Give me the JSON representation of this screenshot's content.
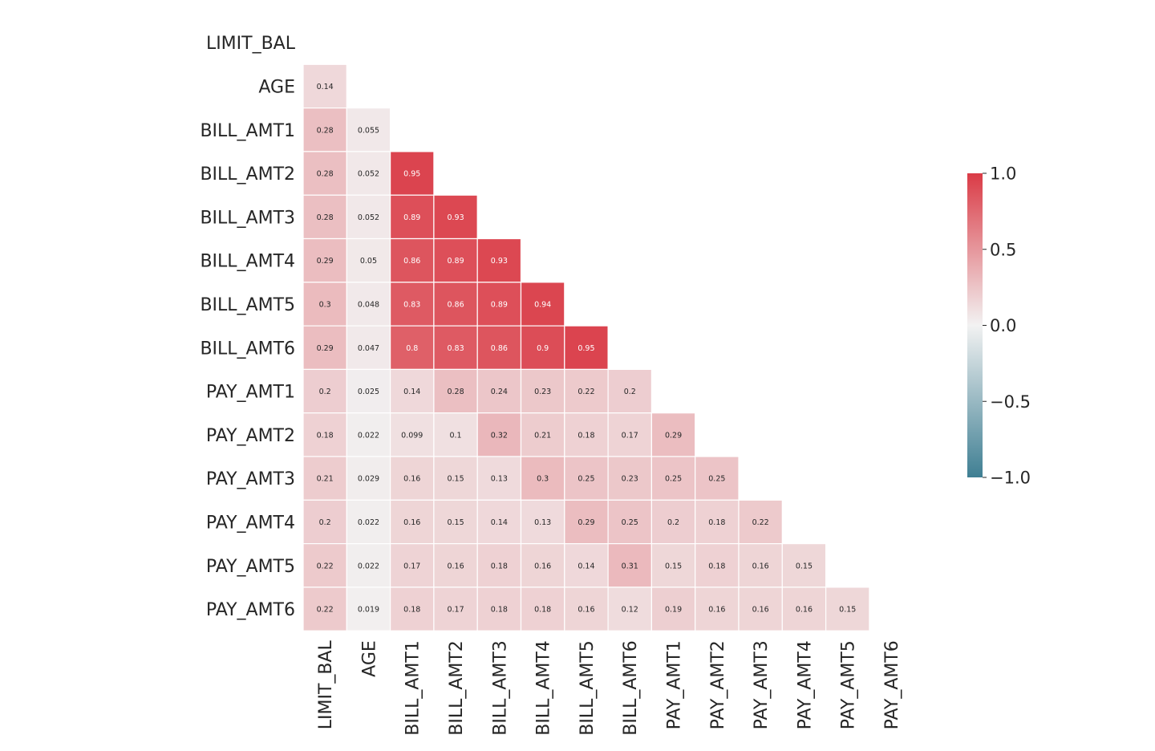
{
  "chart_data": {
    "type": "heatmap",
    "title": "",
    "labels": [
      "LIMIT_BAL",
      "AGE",
      "BILL_AMT1",
      "BILL_AMT2",
      "BILL_AMT3",
      "BILL_AMT4",
      "BILL_AMT5",
      "BILL_AMT6",
      "PAY_AMT1",
      "PAY_AMT2",
      "PAY_AMT3",
      "PAY_AMT4",
      "PAY_AMT5",
      "PAY_AMT6"
    ],
    "mask": "upper-triangle-including-diagonal",
    "rows": [
      [],
      [
        "0.14"
      ],
      [
        "0.28",
        "0.055"
      ],
      [
        "0.28",
        "0.052",
        "0.95"
      ],
      [
        "0.28",
        "0.052",
        "0.89",
        "0.93"
      ],
      [
        "0.29",
        "0.05",
        "0.86",
        "0.89",
        "0.93"
      ],
      [
        "0.3",
        "0.048",
        "0.83",
        "0.86",
        "0.89",
        "0.94"
      ],
      [
        "0.29",
        "0.047",
        "0.8",
        "0.83",
        "0.86",
        "0.9",
        "0.95"
      ],
      [
        "0.2",
        "0.025",
        "0.14",
        "0.28",
        "0.24",
        "0.23",
        "0.22",
        "0.2"
      ],
      [
        "0.18",
        "0.022",
        "0.099",
        "0.1",
        "0.32",
        "0.21",
        "0.18",
        "0.17",
        "0.29"
      ],
      [
        "0.21",
        "0.029",
        "0.16",
        "0.15",
        "0.13",
        "0.3",
        "0.25",
        "0.23",
        "0.25",
        "0.25"
      ],
      [
        "0.2",
        "0.022",
        "0.16",
        "0.15",
        "0.14",
        "0.13",
        "0.29",
        "0.25",
        "0.2",
        "0.18",
        "0.22"
      ],
      [
        "0.22",
        "0.022",
        "0.17",
        "0.16",
        "0.18",
        "0.16",
        "0.14",
        "0.31",
        "0.15",
        "0.18",
        "0.16",
        "0.15"
      ],
      [
        "0.22",
        "0.019",
        "0.18",
        "0.17",
        "0.18",
        "0.18",
        "0.16",
        "0.12",
        "0.19",
        "0.16",
        "0.16",
        "0.16",
        "0.15"
      ]
    ],
    "colorbar": {
      "range": [
        -1.0,
        1.0
      ],
      "ticks": [
        "−1.0",
        "−0.5",
        "0.0",
        "0.5",
        "1.0"
      ],
      "tick_values": [
        -1.0,
        -0.5,
        0.0,
        0.5,
        1.0
      ],
      "colors": {
        "negative": "#3f7f93",
        "zero": "#f2f2f2",
        "positive": "#da3b46"
      }
    }
  }
}
